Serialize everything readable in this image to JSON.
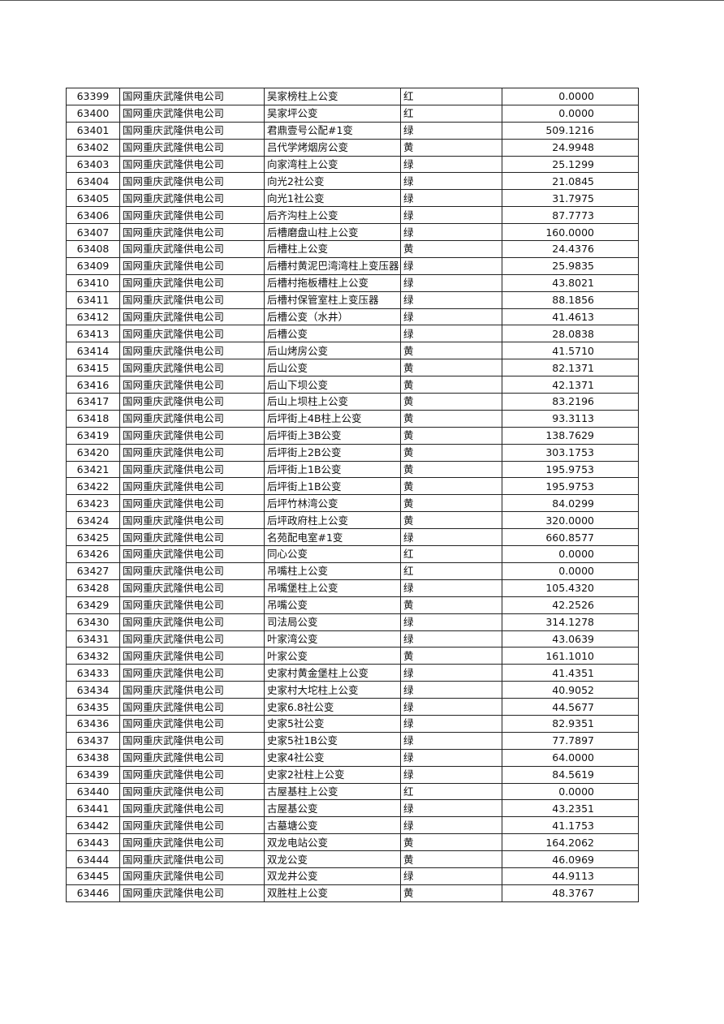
{
  "table": {
    "rows": [
      [
        "63399",
        "国网重庆武隆供电公司",
        "吴家榜柱上公变",
        "红",
        "0.0000"
      ],
      [
        "63400",
        "国网重庆武隆供电公司",
        "吴家坪公变",
        "红",
        "0.0000"
      ],
      [
        "63401",
        "国网重庆武隆供电公司",
        "君鼎壹号公配#1变",
        "绿",
        "509.1216"
      ],
      [
        "63402",
        "国网重庆武隆供电公司",
        "吕代学烤烟房公变",
        "黄",
        "24.9948"
      ],
      [
        "63403",
        "国网重庆武隆供电公司",
        "向家湾柱上公变",
        "绿",
        "25.1299"
      ],
      [
        "63404",
        "国网重庆武隆供电公司",
        "向光2社公变",
        "绿",
        "21.0845"
      ],
      [
        "63405",
        "国网重庆武隆供电公司",
        "向光1社公变",
        "绿",
        "31.7975"
      ],
      [
        "63406",
        "国网重庆武隆供电公司",
        "后齐沟柱上公变",
        "绿",
        "87.7773"
      ],
      [
        "63407",
        "国网重庆武隆供电公司",
        "后槽磨盘山柱上公变",
        "绿",
        "160.0000"
      ],
      [
        "63408",
        "国网重庆武隆供电公司",
        "后槽柱上公变",
        "黄",
        "24.4376"
      ],
      [
        "63409",
        "国网重庆武隆供电公司",
        "后槽村黄泥巴湾湾柱上变压器",
        "绿",
        "25.9835"
      ],
      [
        "63410",
        "国网重庆武隆供电公司",
        "后槽村拖板槽柱上公变",
        "绿",
        "43.8021"
      ],
      [
        "63411",
        "国网重庆武隆供电公司",
        "后槽村保管室柱上变压器",
        "绿",
        "88.1856"
      ],
      [
        "63412",
        "国网重庆武隆供电公司",
        "后槽公变（水井）",
        "绿",
        "41.4613"
      ],
      [
        "63413",
        "国网重庆武隆供电公司",
        "后槽公变",
        "绿",
        "28.0838"
      ],
      [
        "63414",
        "国网重庆武隆供电公司",
        "后山烤房公变",
        "黄",
        "41.5710"
      ],
      [
        "63415",
        "国网重庆武隆供电公司",
        "后山公变",
        "黄",
        "82.1371"
      ],
      [
        "63416",
        "国网重庆武隆供电公司",
        "后山下坝公变",
        "黄",
        "42.1371"
      ],
      [
        "63417",
        "国网重庆武隆供电公司",
        "后山上坝柱上公变",
        "黄",
        "83.2196"
      ],
      [
        "63418",
        "国网重庆武隆供电公司",
        "后坪街上4B柱上公变",
        "黄",
        "93.3113"
      ],
      [
        "63419",
        "国网重庆武隆供电公司",
        "后坪街上3B公变",
        "黄",
        "138.7629"
      ],
      [
        "63420",
        "国网重庆武隆供电公司",
        "后坪街上2B公变",
        "黄",
        "303.1753"
      ],
      [
        "63421",
        "国网重庆武隆供电公司",
        "后坪街上1B公变",
        "黄",
        "195.9753"
      ],
      [
        "63422",
        "国网重庆武隆供电公司",
        "后坪街上1B公变",
        "黄",
        "195.9753"
      ],
      [
        "63423",
        "国网重庆武隆供电公司",
        "后坪竹林湾公变",
        "黄",
        "84.0299"
      ],
      [
        "63424",
        "国网重庆武隆供电公司",
        "后坪政府柱上公变",
        "黄",
        "320.0000"
      ],
      [
        "63425",
        "国网重庆武隆供电公司",
        "名苑配电室#1变",
        "绿",
        "660.8577"
      ],
      [
        "63426",
        "国网重庆武隆供电公司",
        "同心公变",
        "红",
        "0.0000"
      ],
      [
        "63427",
        "国网重庆武隆供电公司",
        "吊嘴柱上公变",
        "红",
        "0.0000"
      ],
      [
        "63428",
        "国网重庆武隆供电公司",
        "吊嘴堡柱上公变",
        "绿",
        "105.4320"
      ],
      [
        "63429",
        "国网重庆武隆供电公司",
        "吊嘴公变",
        "黄",
        "42.2526"
      ],
      [
        "63430",
        "国网重庆武隆供电公司",
        "司法局公变",
        "绿",
        "314.1278"
      ],
      [
        "63431",
        "国网重庆武隆供电公司",
        "叶家湾公变",
        "绿",
        "43.0639"
      ],
      [
        "63432",
        "国网重庆武隆供电公司",
        "叶家公变",
        "黄",
        "161.1010"
      ],
      [
        "63433",
        "国网重庆武隆供电公司",
        "史家村黄金堡柱上公变",
        "绿",
        "41.4351"
      ],
      [
        "63434",
        "国网重庆武隆供电公司",
        "史家村大坨柱上公变",
        "绿",
        "40.9052"
      ],
      [
        "63435",
        "国网重庆武隆供电公司",
        "史家6.8社公变",
        "绿",
        "44.5677"
      ],
      [
        "63436",
        "国网重庆武隆供电公司",
        "史家5社公变",
        "绿",
        "82.9351"
      ],
      [
        "63437",
        "国网重庆武隆供电公司",
        "史家5社1B公变",
        "绿",
        "77.7897"
      ],
      [
        "63438",
        "国网重庆武隆供电公司",
        "史家4社公变",
        "绿",
        "64.0000"
      ],
      [
        "63439",
        "国网重庆武隆供电公司",
        "史家2社柱上公变",
        "绿",
        "84.5619"
      ],
      [
        "63440",
        "国网重庆武隆供电公司",
        "古屋基柱上公变",
        "红",
        "0.0000"
      ],
      [
        "63441",
        "国网重庆武隆供电公司",
        "古屋基公变",
        "绿",
        "43.2351"
      ],
      [
        "63442",
        "国网重庆武隆供电公司",
        "古墓塘公变",
        "绿",
        "41.1753"
      ],
      [
        "63443",
        "国网重庆武隆供电公司",
        "双龙电站公变",
        "黄",
        "164.2062"
      ],
      [
        "63444",
        "国网重庆武隆供电公司",
        "双龙公变",
        "黄",
        "46.0969"
      ],
      [
        "63445",
        "国网重庆武隆供电公司",
        "双龙井公变",
        "绿",
        "44.9113"
      ],
      [
        "63446",
        "国网重庆武隆供电公司",
        "双胜柱上公变",
        "黄",
        "48.3767"
      ]
    ]
  }
}
